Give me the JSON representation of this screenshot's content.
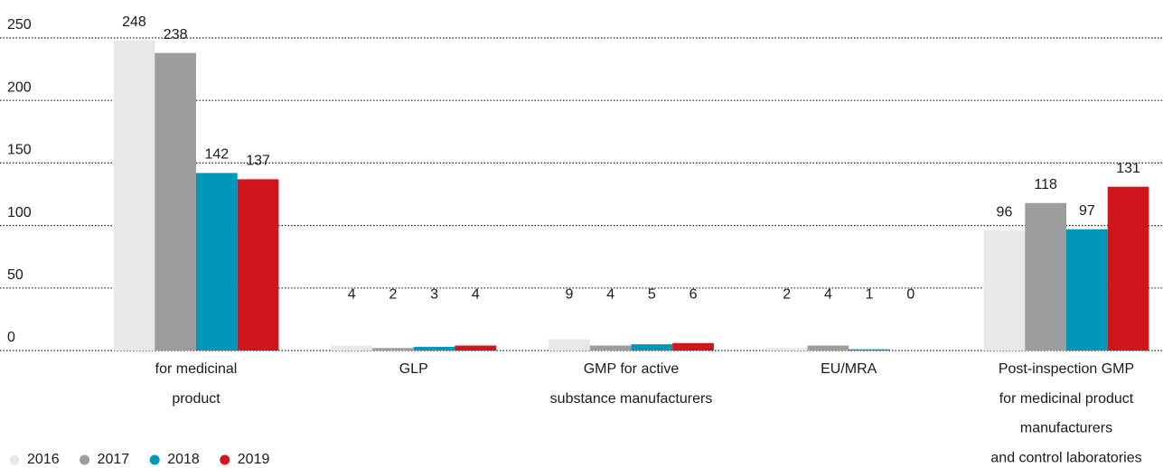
{
  "chart_data": {
    "type": "bar",
    "categories": [
      [
        "for medicinal",
        "product"
      ],
      [
        "GLP"
      ],
      [
        "GMP for active",
        "substance manufacturers"
      ],
      [
        "EU/MRA"
      ],
      [
        "Post-inspection GMP",
        "for medicinal product",
        "manufacturers",
        "and control laboratories"
      ]
    ],
    "series": [
      {
        "name": "2016",
        "color": "#e8e8e8",
        "values": [
          248,
          4,
          9,
          2,
          96
        ]
      },
      {
        "name": "2017",
        "color": "#9d9d9d",
        "values": [
          238,
          2,
          4,
          4,
          118
        ]
      },
      {
        "name": "2018",
        "color": "#0097ba",
        "values": [
          142,
          3,
          5,
          1,
          97
        ]
      },
      {
        "name": "2019",
        "color": "#d0161d",
        "values": [
          137,
          4,
          6,
          0,
          131
        ]
      }
    ],
    "ylim": [
      0,
      250
    ],
    "yticks": [
      0,
      50,
      100,
      150,
      200,
      250
    ],
    "grid": true,
    "legend": "bottom-left"
  }
}
